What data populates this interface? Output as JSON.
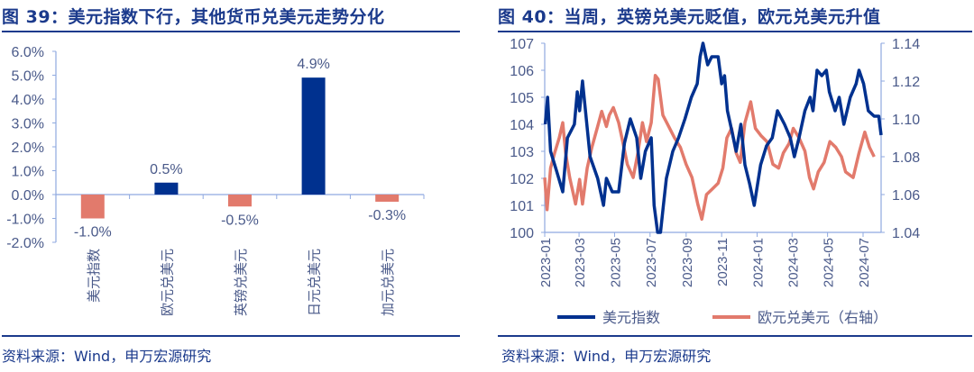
{
  "chart_data": [
    {
      "type": "bar",
      "title": "图 39：美元指数下行，其他货币兑美元走势分化",
      "source": "资料来源：Wind，申万宏源研究",
      "categories": [
        "美元指数",
        "欧元兑美元",
        "英镑兑美元",
        "日元兑美元",
        "加元兑美元"
      ],
      "values": [
        -1.0,
        0.5,
        -0.5,
        4.9,
        -0.3
      ],
      "data_labels": [
        "-1.0%",
        "0.5%",
        "-0.5%",
        "4.9%",
        "-0.3%"
      ],
      "ylim": [
        -2.0,
        6.0
      ],
      "yticks": [
        "-2.0%",
        "-1.0%",
        "0.0%",
        "1.0%",
        "2.0%",
        "3.0%",
        "4.0%",
        "5.0%",
        "6.0%"
      ],
      "colors": {
        "positive": "#00318f",
        "negative": "#e27a6c"
      },
      "grid": false
    },
    {
      "type": "line",
      "title": "图 40：当周，英镑兑美元贬值，欧元兑美元升值",
      "source": "资料来源：Wind，申万宏源研究",
      "xticks": [
        "2023-01",
        "2023-03",
        "2023-05",
        "2023-07",
        "2023-09",
        "2023-11",
        "2024-01",
        "2024-03",
        "2024-05",
        "2024-07"
      ],
      "xlim": [
        "2023-01-01",
        "2024-08-01"
      ],
      "ylim_left": [
        100,
        107
      ],
      "yticks_left": [
        "100",
        "101",
        "102",
        "103",
        "104",
        "105",
        "106",
        "107"
      ],
      "ylim_right": [
        1.04,
        1.14
      ],
      "yticks_right": [
        "1.04",
        "1.06",
        "1.08",
        "1.10",
        "1.12",
        "1.14"
      ],
      "legend_position": "bottom",
      "grid": false,
      "series": [
        {
          "name": "美元指数",
          "axis": "left",
          "color": "#00318f",
          "points": [
            [
              "2023-01-02",
              104
            ],
            [
              "2023-01-06",
              105
            ],
            [
              "2023-01-11",
              103
            ],
            [
              "2023-01-21",
              102.3
            ],
            [
              "2023-02-01",
              101.5
            ],
            [
              "2023-02-09",
              103.5
            ],
            [
              "2023-02-21",
              104
            ],
            [
              "2023-02-26",
              105.2
            ],
            [
              "2023-03-02",
              104.5
            ],
            [
              "2023-03-07",
              105.6
            ],
            [
              "2023-03-12",
              104.5
            ],
            [
              "2023-03-20",
              102.8
            ],
            [
              "2023-04-02",
              102
            ],
            [
              "2023-04-12",
              101
            ],
            [
              "2023-04-17",
              102
            ],
            [
              "2023-04-27",
              101.5
            ],
            [
              "2023-05-08",
              101.5
            ],
            [
              "2023-05-18",
              103.3
            ],
            [
              "2023-05-28",
              104.2
            ],
            [
              "2023-06-08",
              103.5
            ],
            [
              "2023-06-15",
              102
            ],
            [
              "2023-06-23",
              103
            ],
            [
              "2023-07-03",
              103.5
            ],
            [
              "2023-07-08",
              101
            ],
            [
              "2023-07-14",
              100
            ],
            [
              "2023-07-19",
              100
            ],
            [
              "2023-07-24",
              101
            ],
            [
              "2023-07-29",
              102
            ],
            [
              "2023-08-09",
              103
            ],
            [
              "2023-08-19",
              103.5
            ],
            [
              "2023-08-30",
              104.2
            ],
            [
              "2023-09-10",
              105
            ],
            [
              "2023-09-20",
              105.5
            ],
            [
              "2023-09-25",
              106.5
            ],
            [
              "2023-09-30",
              107
            ],
            [
              "2023-10-08",
              106.2
            ],
            [
              "2023-10-15",
              106.5
            ],
            [
              "2023-10-26",
              106.5
            ],
            [
              "2023-11-01",
              105.5
            ],
            [
              "2023-11-06",
              105.8
            ],
            [
              "2023-11-11",
              104.5
            ],
            [
              "2023-11-18",
              103.8
            ],
            [
              "2023-11-26",
              103
            ],
            [
              "2023-12-04",
              104
            ],
            [
              "2023-12-11",
              102.5
            ],
            [
              "2023-12-19",
              101.8
            ],
            [
              "2023-12-27",
              101
            ],
            [
              "2024-01-07",
              102.5
            ],
            [
              "2024-01-17",
              103.2
            ],
            [
              "2024-01-27",
              103.5
            ],
            [
              "2024-02-05",
              104.5
            ],
            [
              "2024-02-17",
              104
            ],
            [
              "2024-02-27",
              103.5
            ],
            [
              "2024-03-05",
              102.8
            ],
            [
              "2024-03-13",
              103.5
            ],
            [
              "2024-03-23",
              104.5
            ],
            [
              "2024-04-01",
              105
            ],
            [
              "2024-04-06",
              104.5
            ],
            [
              "2024-04-13",
              106
            ],
            [
              "2024-04-21",
              105.8
            ],
            [
              "2024-04-29",
              106
            ],
            [
              "2024-05-04",
              105.2
            ],
            [
              "2024-05-14",
              104.5
            ],
            [
              "2024-05-21",
              105
            ],
            [
              "2024-05-29",
              104
            ],
            [
              "2024-06-09",
              105
            ],
            [
              "2024-06-19",
              105.5
            ],
            [
              "2024-06-24",
              106
            ],
            [
              "2024-07-02",
              105.5
            ],
            [
              "2024-07-10",
              104.5
            ],
            [
              "2024-07-20",
              104.3
            ],
            [
              "2024-07-28",
              104.3
            ],
            [
              "2024-08-01",
              103.6
            ]
          ]
        },
        {
          "name": "欧元兑美元（右轴）",
          "axis": "right",
          "color": "#e27a6c",
          "points": [
            [
              "2023-01-01",
              1.069
            ],
            [
              "2023-01-05",
              1.052
            ],
            [
              "2023-01-11",
              1.074
            ],
            [
              "2023-01-18",
              1.082
            ],
            [
              "2023-01-26",
              1.09
            ],
            [
              "2023-02-01",
              1.098
            ],
            [
              "2023-02-06",
              1.082
            ],
            [
              "2023-02-13",
              1.069
            ],
            [
              "2023-02-23",
              1.055
            ],
            [
              "2023-03-02",
              1.068
            ],
            [
              "2023-03-07",
              1.055
            ],
            [
              "2023-03-15",
              1.074
            ],
            [
              "2023-03-23",
              1.085
            ],
            [
              "2023-04-02",
              1.096
            ],
            [
              "2023-04-09",
              1.104
            ],
            [
              "2023-04-17",
              1.096
            ],
            [
              "2023-04-22",
              1.102
            ],
            [
              "2023-04-29",
              1.106
            ],
            [
              "2023-05-08",
              1.098
            ],
            [
              "2023-05-15",
              1.088
            ],
            [
              "2023-05-23",
              1.076
            ],
            [
              "2023-06-02",
              1.069
            ],
            [
              "2023-06-10",
              1.082
            ],
            [
              "2023-06-18",
              1.098
            ],
            [
              "2023-06-25",
              1.088
            ],
            [
              "2023-07-03",
              1.098
            ],
            [
              "2023-07-10",
              1.123
            ],
            [
              "2023-07-15",
              1.121
            ],
            [
              "2023-07-23",
              1.102
            ],
            [
              "2023-08-02",
              1.096
            ],
            [
              "2023-08-12",
              1.09
            ],
            [
              "2023-08-22",
              1.085
            ],
            [
              "2023-09-01",
              1.076
            ],
            [
              "2023-09-11",
              1.069
            ],
            [
              "2023-09-21",
              1.055
            ],
            [
              "2023-09-28",
              1.047
            ],
            [
              "2023-10-06",
              1.06
            ],
            [
              "2023-10-16",
              1.063
            ],
            [
              "2023-10-26",
              1.066
            ],
            [
              "2023-11-03",
              1.074
            ],
            [
              "2023-11-10",
              1.09
            ],
            [
              "2023-11-18",
              1.095
            ],
            [
              "2023-11-26",
              1.082
            ],
            [
              "2023-12-03",
              1.077
            ],
            [
              "2023-12-11",
              1.098
            ],
            [
              "2023-12-21",
              1.109
            ],
            [
              "2023-12-29",
              1.095
            ],
            [
              "2024-01-08",
              1.091
            ],
            [
              "2024-01-18",
              1.088
            ],
            [
              "2024-01-28",
              1.076
            ],
            [
              "2024-02-07",
              1.074
            ],
            [
              "2024-02-15",
              1.082
            ],
            [
              "2024-02-25",
              1.087
            ],
            [
              "2024-03-03",
              1.095
            ],
            [
              "2024-03-13",
              1.09
            ],
            [
              "2024-03-23",
              1.083
            ],
            [
              "2024-03-31",
              1.069
            ],
            [
              "2024-04-07",
              1.063
            ],
            [
              "2024-04-15",
              1.072
            ],
            [
              "2024-04-25",
              1.077
            ],
            [
              "2024-05-05",
              1.088
            ],
            [
              "2024-05-15",
              1.085
            ],
            [
              "2024-05-25",
              1.08
            ],
            [
              "2024-06-01",
              1.072
            ],
            [
              "2024-06-14",
              1.069
            ],
            [
              "2024-06-24",
              1.082
            ],
            [
              "2024-07-04",
              1.093
            ],
            [
              "2024-07-12",
              1.085
            ],
            [
              "2024-07-20",
              1.08
            ]
          ]
        }
      ]
    }
  ]
}
